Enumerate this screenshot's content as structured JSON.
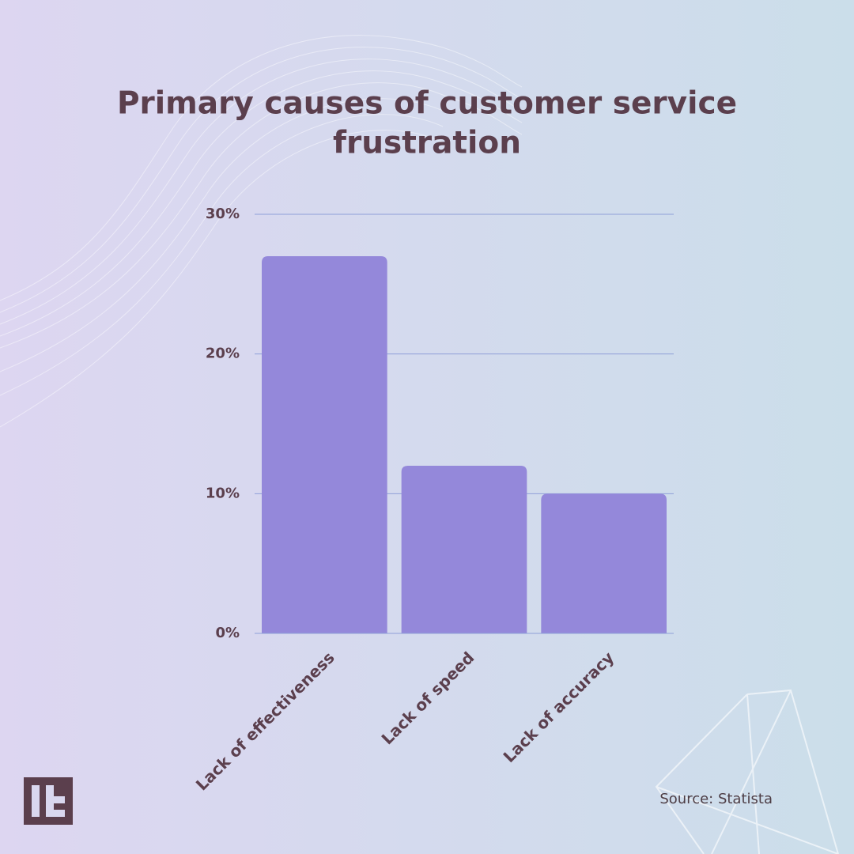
{
  "chart_data": {
    "type": "bar",
    "title": [
      "Primary causes of customer service",
      "frustration"
    ],
    "categories": [
      "Lack of effectiveness",
      "Lack of speed",
      "Lack of accuracy"
    ],
    "values": [
      27,
      12,
      10
    ],
    "color": "#9488da",
    "ylim": [
      0,
      30
    ],
    "yticks": [
      {
        "value": 0,
        "label": "0%"
      },
      {
        "value": 10,
        "label": "10%"
      },
      {
        "value": 20,
        "label": "20%"
      },
      {
        "value": 30,
        "label": "30%"
      }
    ],
    "grid": true,
    "source": "Source: Statista"
  }
}
